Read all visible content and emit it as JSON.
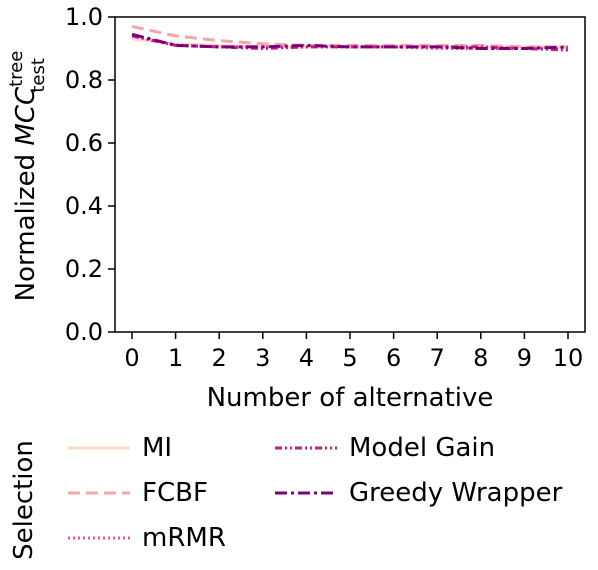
{
  "chart_data": {
    "type": "line",
    "x": [
      0,
      1,
      2,
      3,
      4,
      5,
      6,
      7,
      8,
      9,
      10
    ],
    "xlabel": "Number of alternative",
    "ylabel_prefix": "Normalized ",
    "ylabel_var": "MCC",
    "ylabel_sup": "tree",
    "ylabel_sub": "test",
    "xlim": [
      0,
      10
    ],
    "ylim": [
      0.0,
      1.0
    ],
    "yticks": [
      "0.0",
      "0.2",
      "0.4",
      "0.6",
      "0.8",
      "1.0"
    ],
    "xticks": [
      "0",
      "1",
      "2",
      "3",
      "4",
      "5",
      "6",
      "7",
      "8",
      "9",
      "10"
    ],
    "legend_title": "Selection",
    "series": [
      {
        "name": "MI",
        "color": "#fbd9c9",
        "dash": "",
        "width": 3,
        "values": [
          0.93,
          0.915,
          0.91,
          0.905,
          0.905,
          0.905,
          0.905,
          0.905,
          0.905,
          0.905,
          0.905
        ]
      },
      {
        "name": "FCBF",
        "color": "#f4a6ad",
        "dash": "12,6",
        "width": 3,
        "values": [
          0.97,
          0.94,
          0.925,
          0.915,
          0.91,
          0.91,
          0.91,
          0.91,
          0.91,
          0.905,
          0.905
        ]
      },
      {
        "name": "mRMR",
        "color": "#e7589b",
        "dash": "2,3",
        "width": 3,
        "values": [
          0.94,
          0.91,
          0.905,
          0.905,
          0.905,
          0.905,
          0.905,
          0.9,
          0.9,
          0.9,
          0.9
        ]
      },
      {
        "name": "Model Gain",
        "color": "#c51b8a",
        "dash": "7,3,2,3,2,3",
        "width": 3,
        "values": [
          0.94,
          0.91,
          0.905,
          0.9,
          0.905,
          0.905,
          0.905,
          0.905,
          0.905,
          0.9,
          0.895
        ]
      },
      {
        "name": "Greedy Wrapper",
        "color": "#7a0177",
        "dash": "12,4,3,4",
        "width": 3,
        "values": [
          0.945,
          0.91,
          0.905,
          0.905,
          0.91,
          0.905,
          0.905,
          0.905,
          0.9,
          0.9,
          0.905
        ]
      }
    ]
  }
}
